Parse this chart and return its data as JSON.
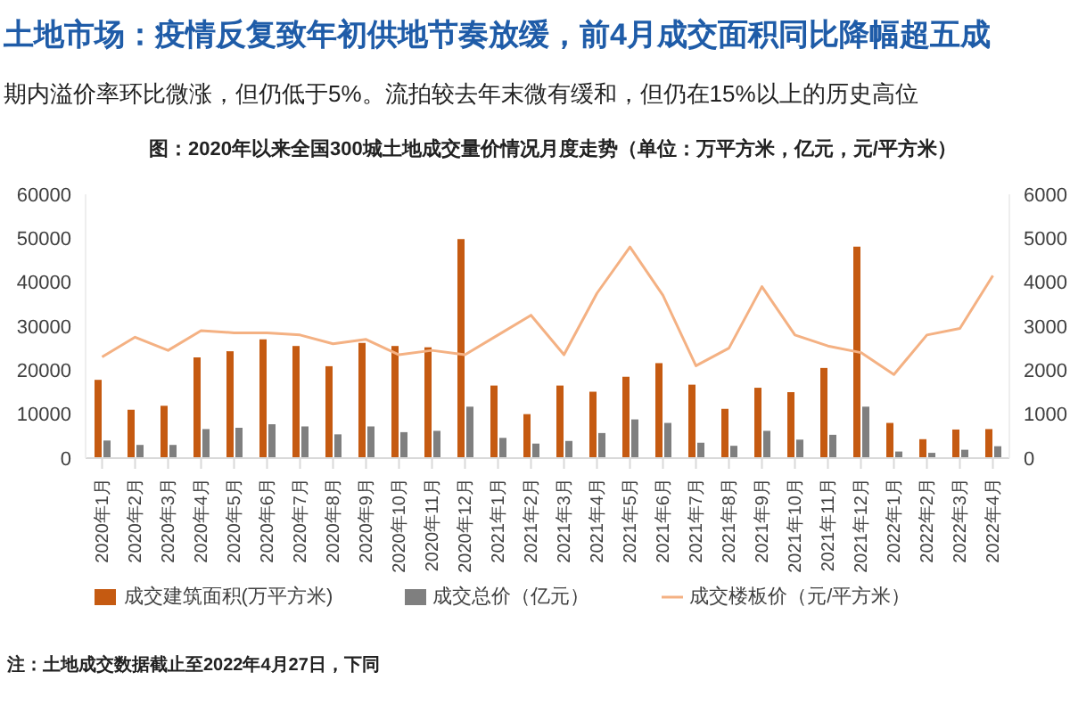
{
  "chart_data": {
    "type": "bar",
    "title": "土地市场：疫情反复致年初供地节奏放缓，前4月成交面积同比降幅超五成",
    "subtitle": "期内溢价率环比微涨，但仍低于5%。流拍较去年末微有缓和，但仍在15%以上的历史高位",
    "annotations": [
      "图：2020年以来全国300城土地成交量价情况月度走势（单位：万平方米，亿元，元/平方米）",
      "注：土地成交数据截止至2022年4月27日，下同"
    ],
    "categories": [
      "2020年1月",
      "2020年2月",
      "2020年3月",
      "2020年4月",
      "2020年5月",
      "2020年6月",
      "2020年7月",
      "2020年8月",
      "2020年9月",
      "2020年10月",
      "2020年11月",
      "2020年12月",
      "2021年1月",
      "2021年2月",
      "2021年3月",
      "2021年4月",
      "2021年5月",
      "2021年6月",
      "2021年7月",
      "2021年8月",
      "2021年9月",
      "2021年10月",
      "2021年11月",
      "2021年12月",
      "2022年1月",
      "2022年2月",
      "2022年3月",
      "2022年4月"
    ],
    "series": [
      {
        "name": "成交建筑面积(万平方米)",
        "color": "#c55a11",
        "values": [
          17800,
          11000,
          11900,
          22900,
          24300,
          27000,
          25500,
          20900,
          26200,
          25500,
          25200,
          49800,
          16500,
          10000,
          16500,
          15100,
          18500,
          21600,
          16700,
          11200,
          16000,
          15000,
          20500,
          48100,
          8000,
          4300,
          6500,
          6600
        ]
      },
      {
        "name": "成交总价（亿元）",
        "color": "#7f7f7f",
        "values": [
          4000,
          3000,
          3000,
          6600,
          6900,
          7700,
          7200,
          5400,
          7200,
          5900,
          6200,
          11700,
          4600,
          3300,
          3900,
          5700,
          8800,
          8000,
          3500,
          2800,
          6200,
          4200,
          5300,
          11700,
          1500,
          1200,
          1900,
          2700
        ]
      },
      {
        "name": "成交楼板价（元/平方米）",
        "type": "line",
        "axis": "y2",
        "color": "#f4b183",
        "values": [
          2300,
          2750,
          2450,
          2900,
          2850,
          2850,
          2800,
          2600,
          2700,
          2350,
          2450,
          2350,
          2800,
          3250,
          2350,
          3750,
          4800,
          3700,
          2100,
          2500,
          3900,
          2800,
          2550,
          2400,
          1900,
          2800,
          2950,
          4150
        ]
      }
    ],
    "ylim": [
      0,
      60000
    ],
    "yticks": [
      0,
      10000,
      20000,
      30000,
      40000,
      50000,
      60000
    ],
    "y2lim": [
      0,
      6000
    ],
    "y2ticks": [
      0,
      1000,
      2000,
      3000,
      4000,
      5000,
      6000
    ],
    "legend": "bottom"
  }
}
